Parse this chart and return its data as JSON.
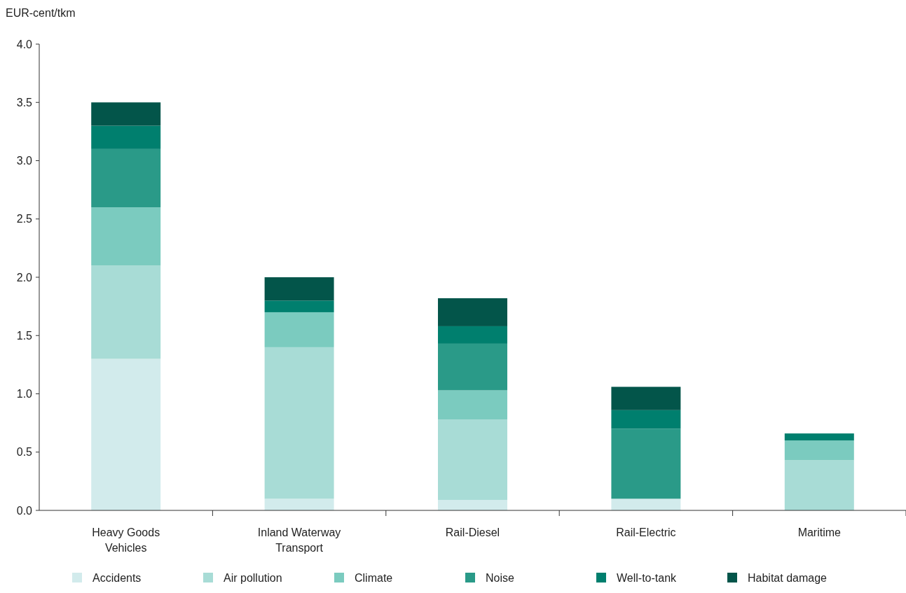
{
  "chart_data": {
    "type": "bar",
    "stacked": true,
    "ylabel": "EUR-cent/tkm",
    "categories": [
      "Heavy Goods Vehicles",
      "Inland Waterway Transport",
      "Rail-Diesel",
      "Rail-Electric",
      "Maritime"
    ],
    "series": [
      {
        "name": "Accidents",
        "color": "#d2ebec",
        "values": [
          1.3,
          0.1,
          0.09,
          0.1,
          0
        ]
      },
      {
        "name": "Air pollution",
        "color": "#a8dcd6",
        "values": [
          0.8,
          1.3,
          0.69,
          0,
          0.43
        ]
      },
      {
        "name": "Climate",
        "color": "#7bcbbf",
        "values": [
          0.5,
          0.3,
          0.25,
          0,
          0.17
        ]
      },
      {
        "name": "Noise",
        "color": "#2a9a88",
        "values": [
          0.5,
          0,
          0.4,
          0.6,
          0
        ]
      },
      {
        "name": "Well-to-tank",
        "color": "#007f6e",
        "values": [
          0.2,
          0.1,
          0.15,
          0.16,
          0.06
        ]
      },
      {
        "name": "Habitat damage",
        "color": "#03554a",
        "values": [
          0.2,
          0.2,
          0.24,
          0.2,
          0
        ]
      }
    ],
    "ylim": [
      0,
      4
    ],
    "yticks": [
      {
        "value": 0,
        "label": "0.0"
      },
      {
        "value": 0.5,
        "label": "0.5"
      },
      {
        "value": 1,
        "label": "1.0"
      },
      {
        "value": 1.5,
        "label": "1.5"
      },
      {
        "value": 2,
        "label": "2.0"
      },
      {
        "value": 2.5,
        "label": "2.5"
      },
      {
        "value": 3,
        "label": "3.0"
      },
      {
        "value": 3.5,
        "label": "3.5"
      },
      {
        "value": 4,
        "label": "4.0"
      }
    ],
    "grid": false,
    "legend": "bottom"
  }
}
